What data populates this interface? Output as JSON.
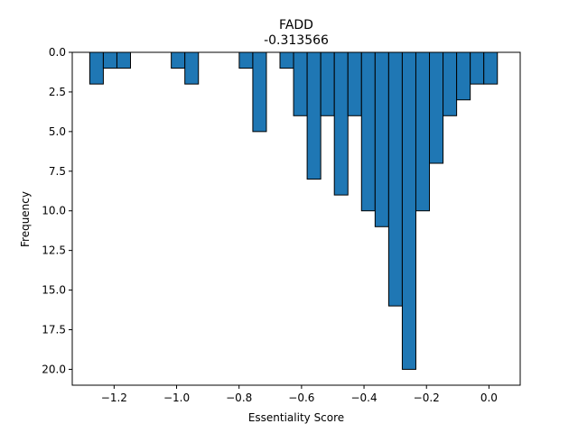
{
  "chart_data": {
    "type": "bar",
    "title": "FADD",
    "subtitle": "-0.313566",
    "xlabel": "Essentiality Score",
    "ylabel": "Frequency",
    "xlim": [
      -1.334,
      0.1
    ],
    "ylim": [
      21,
      0
    ],
    "y_inverted": true,
    "grid": false,
    "bin_width": 0.0435,
    "bars": [
      {
        "x0": -1.278,
        "x1": -1.2345,
        "value": 2
      },
      {
        "x0": -1.2345,
        "x1": -1.191,
        "value": 1
      },
      {
        "x0": -1.191,
        "x1": -1.1475,
        "value": 1
      },
      {
        "x0": -1.017,
        "x1": -0.9735,
        "value": 1
      },
      {
        "x0": -0.9735,
        "x1": -0.93,
        "value": 2
      },
      {
        "x0": -0.7995,
        "x1": -0.756,
        "value": 1
      },
      {
        "x0": -0.756,
        "x1": -0.7125,
        "value": 5
      },
      {
        "x0": -0.669,
        "x1": -0.6255,
        "value": 1
      },
      {
        "x0": -0.6255,
        "x1": -0.582,
        "value": 4
      },
      {
        "x0": -0.582,
        "x1": -0.5385,
        "value": 8
      },
      {
        "x0": -0.5385,
        "x1": -0.495,
        "value": 4
      },
      {
        "x0": -0.495,
        "x1": -0.4515,
        "value": 9
      },
      {
        "x0": -0.4515,
        "x1": -0.408,
        "value": 4
      },
      {
        "x0": -0.408,
        "x1": -0.3645,
        "value": 10
      },
      {
        "x0": -0.3645,
        "x1": -0.321,
        "value": 11
      },
      {
        "x0": -0.321,
        "x1": -0.2775,
        "value": 16
      },
      {
        "x0": -0.2775,
        "x1": -0.234,
        "value": 20
      },
      {
        "x0": -0.234,
        "x1": -0.1905,
        "value": 10
      },
      {
        "x0": -0.1905,
        "x1": -0.147,
        "value": 7
      },
      {
        "x0": -0.147,
        "x1": -0.1035,
        "value": 4
      },
      {
        "x0": -0.1035,
        "x1": -0.06,
        "value": 3
      },
      {
        "x0": -0.06,
        "x1": -0.0165,
        "value": 2
      },
      {
        "x0": -0.0165,
        "x1": 0.027,
        "value": 2
      }
    ],
    "x_ticks": [
      {
        "value": -1.2,
        "label": "−1.2"
      },
      {
        "value": -1.0,
        "label": "−1.0"
      },
      {
        "value": -0.8,
        "label": "−0.8"
      },
      {
        "value": -0.6,
        "label": "−0.6"
      },
      {
        "value": -0.4,
        "label": "−0.4"
      },
      {
        "value": -0.2,
        "label": "−0.2"
      },
      {
        "value": 0.0,
        "label": "0.0"
      }
    ],
    "y_ticks": [
      {
        "value": 0,
        "label": "0.0"
      },
      {
        "value": 2.5,
        "label": "2.5"
      },
      {
        "value": 5,
        "label": "5.0"
      },
      {
        "value": 7.5,
        "label": "7.5"
      },
      {
        "value": 10,
        "label": "10.0"
      },
      {
        "value": 12.5,
        "label": "12.5"
      },
      {
        "value": 15,
        "label": "15.0"
      },
      {
        "value": 17.5,
        "label": "17.5"
      },
      {
        "value": 20,
        "label": "20.0"
      }
    ],
    "colors": {
      "bar_fill": "#1f77b4",
      "bar_edge": "#000000"
    }
  }
}
